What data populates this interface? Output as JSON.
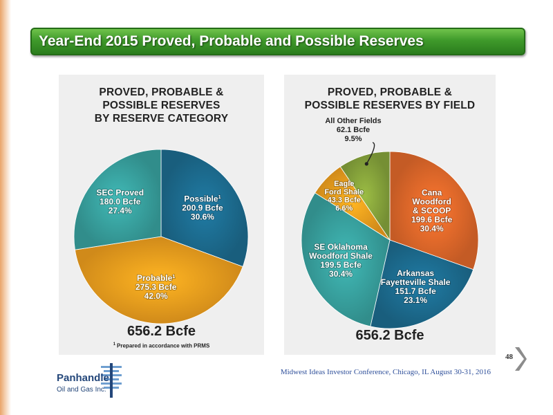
{
  "slide": {
    "title": "Year-End 2015 Proved, Probable and Possible Reserves",
    "page_number": "48",
    "conference": "Midwest Ideas Investor Conference, Chicago, IL August 30-31, 2016"
  },
  "logo": {
    "name": "Panhandle",
    "subtitle": "Oil and Gas Inc."
  },
  "chart_data": [
    {
      "type": "pie",
      "title": [
        "PROVED, PROBABLE &",
        "POSSIBLE RESERVES",
        "BY RESERVE CATEGORY"
      ],
      "unit": "Bcfe",
      "total": "656.2 Bcfe",
      "footnote_marker": "1",
      "footnote": "Prepared in accordance with PRMS",
      "start_angle_deg": 0,
      "slices": [
        {
          "name": "Possible",
          "sup": "1",
          "value": 200.9,
          "value_label": "200.9 Bcfe",
          "percent_label": "30.6%",
          "color": "#1d6f93"
        },
        {
          "name": "Probable",
          "sup": "1",
          "value": 275.3,
          "value_label": "275.3 Bcfe",
          "percent_label": "42.0%",
          "color": "#f5a21e"
        },
        {
          "name": "SEC Proved",
          "sup": "",
          "value": 180.0,
          "value_label": "180.0 Bcfe",
          "percent_label": "27.4%",
          "color": "#3aa6a3"
        }
      ]
    },
    {
      "type": "pie",
      "title": [
        "PROVED, PROBABLE &",
        "POSSIBLE RESERVES BY FIELD"
      ],
      "unit": "Bcfe",
      "total": "656.2 Bcfe",
      "start_angle_deg": 0,
      "slices": [
        {
          "name": "Cana Woodford & SCOOP",
          "value": 199.6,
          "value_label": "199.6 Bcfe",
          "percent_label": "30.4%",
          "color": "#e66b2b"
        },
        {
          "name": "Arkansas Fayetteville Shale",
          "value": 151.7,
          "value_label": "151.7 Bcfe",
          "percent_label": "23.1%",
          "color": "#1d6f93"
        },
        {
          "name": "SE Oklahoma Woodford Shale",
          "value": 199.5,
          "value_label": "199.5 Bcfe",
          "percent_label": "30.4%",
          "color": "#3aa6a3"
        },
        {
          "name": "Eagle Ford Shale",
          "value": 43.3,
          "value_label": "43.3 Bcfe",
          "percent_label": "6.6%",
          "color": "#f5a21e"
        },
        {
          "name": "All Other Fields",
          "value": 62.1,
          "value_label": "62.1 Bcfe",
          "percent_label": "9.5%",
          "color": "#8aa83d"
        }
      ]
    }
  ]
}
